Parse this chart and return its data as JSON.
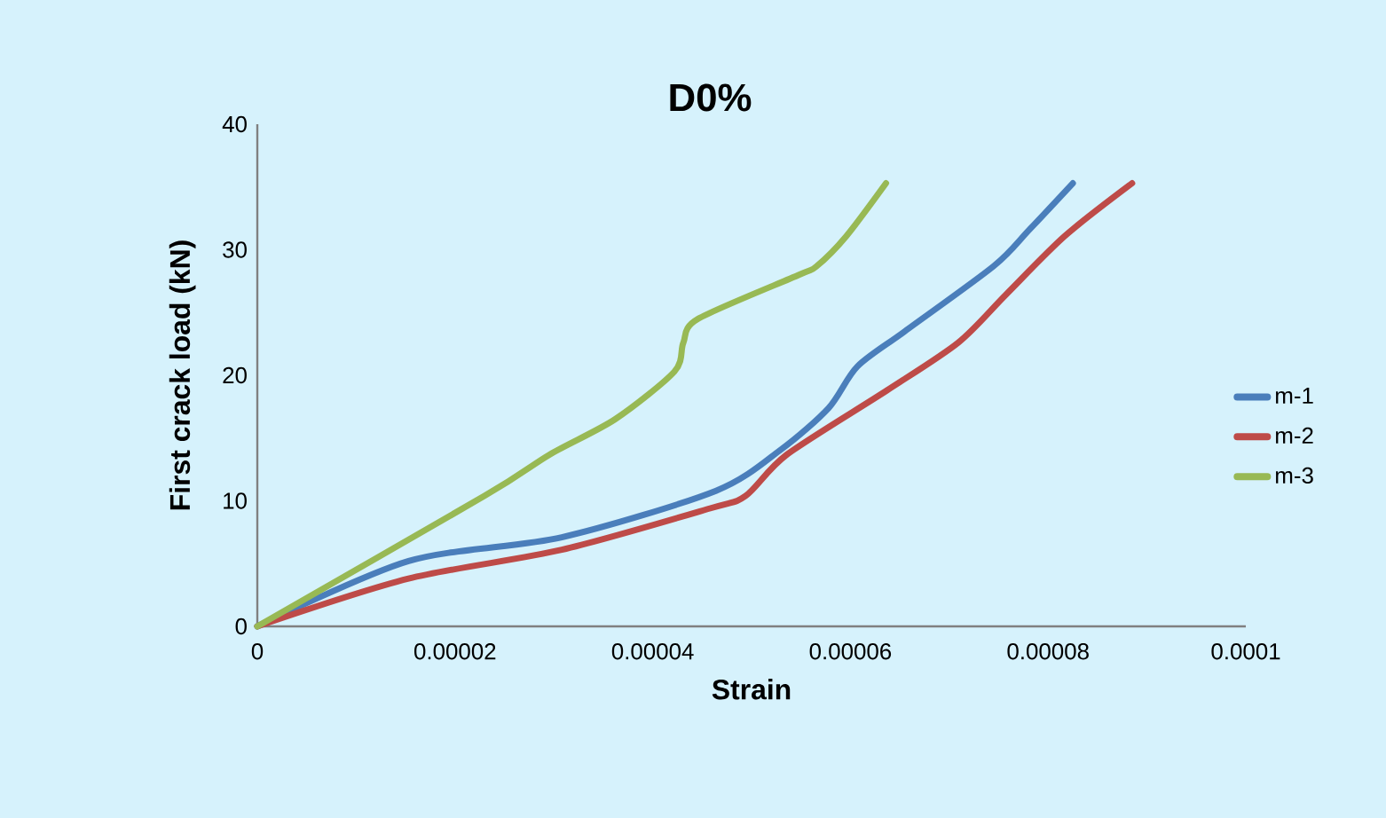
{
  "chart_data": {
    "type": "line",
    "title": "D0%",
    "xlabel": "Strain",
    "ylabel": "First crack load (kN)",
    "xlim": [
      0,
      0.0001
    ],
    "ylim": [
      0,
      40
    ],
    "xticks": [
      0,
      {
        "value": 2e-05,
        "label": "0.00002"
      },
      {
        "value": 4e-05,
        "label": "0.00004"
      },
      {
        "value": 6e-05,
        "label": "0.00006"
      },
      {
        "value": 8e-05,
        "label": "0.00008"
      },
      {
        "value": 0.0001,
        "label": "0.0001"
      }
    ],
    "yticks": [
      0,
      10,
      20,
      30,
      40
    ],
    "grid": false,
    "legend": "right",
    "marker": "none",
    "line_style": "solid",
    "series": [
      {
        "name": "m-1",
        "color": "#4a7ebb",
        "x": [
          0,
          1.53e-05,
          3.08e-05,
          4.64e-05,
          5.3e-05,
          5.78e-05,
          6.07e-05,
          6.55e-05,
          7.45e-05,
          7.81e-05,
          8.25e-05
        ],
        "values": [
          0,
          5.2,
          7.1,
          10.8,
          14.1,
          17.4,
          20.7,
          23.5,
          28.7,
          31.6,
          35.3
        ]
      },
      {
        "name": "m-2",
        "color": "#be4b48",
        "x": [
          0,
          1.53e-05,
          3.08e-05,
          4.58e-05,
          4.94e-05,
          5.36e-05,
          6.37e-05,
          7.09e-05,
          7.57e-05,
          8.17e-05,
          8.85e-05
        ],
        "values": [
          0,
          3.8,
          6.1,
          9.4,
          10.4,
          13.7,
          18.8,
          22.6,
          26.4,
          31.1,
          35.3
        ]
      },
      {
        "name": "m-3",
        "color": "#98b954",
        "x": [
          0,
          2.3e-05,
          2.96e-05,
          3.62e-05,
          4.22e-05,
          4.31e-05,
          4.46e-05,
          5.48e-05,
          5.66e-05,
          5.96e-05,
          6.36e-05
        ],
        "values": [
          0,
          10.4,
          13.7,
          16.5,
          20.3,
          22.6,
          24.5,
          28.0,
          28.7,
          31.1,
          35.3
        ]
      }
    ]
  }
}
